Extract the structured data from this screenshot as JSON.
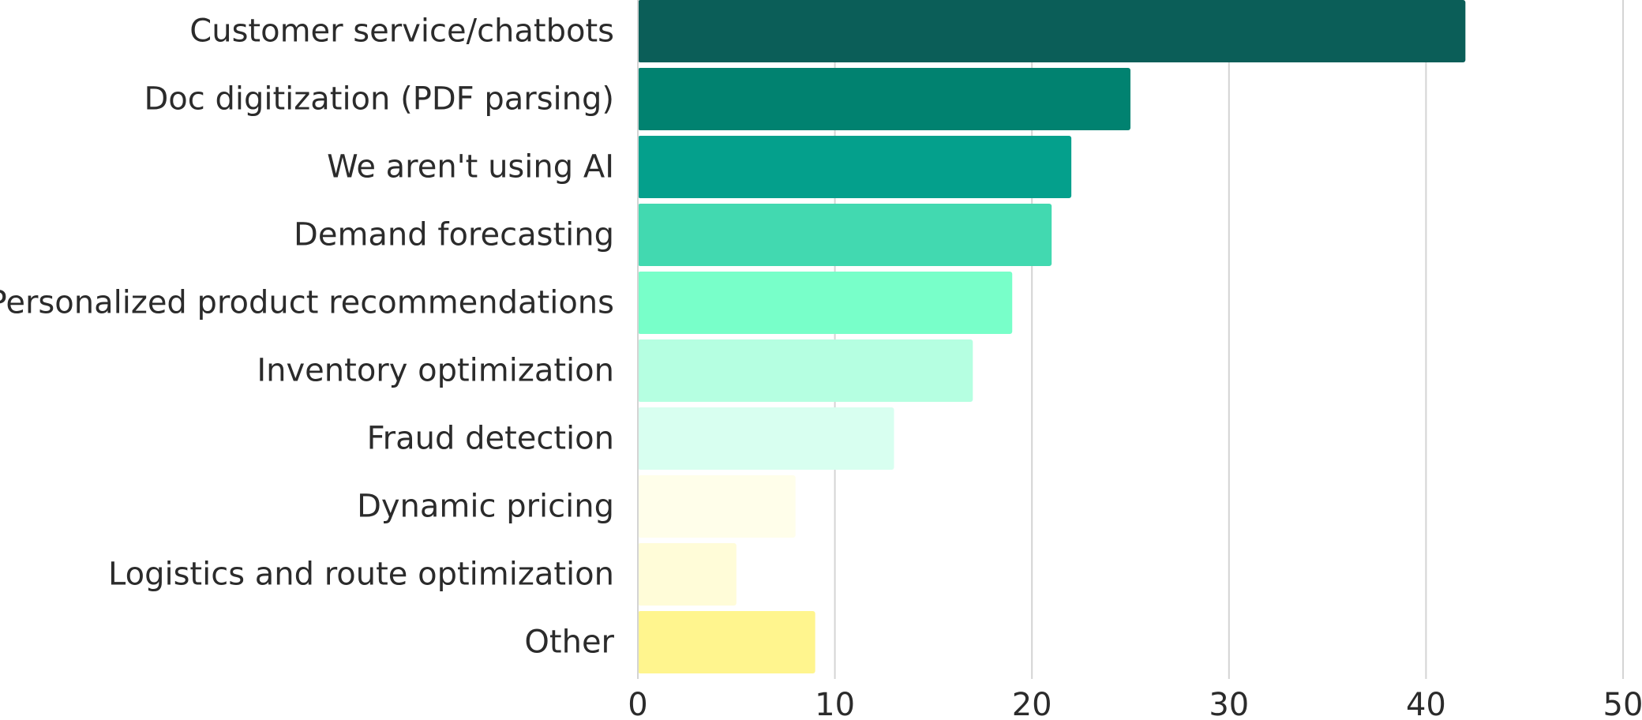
{
  "chart_data": {
    "type": "bar",
    "orientation": "horizontal",
    "categories": [
      "Customer service/chatbots",
      "Doc digitization (PDF parsing)",
      "We aren't using AI",
      "Demand forecasting",
      "Personalized product recommendations",
      "Inventory optimization",
      "Fraud detection",
      "Dynamic pricing",
      "Logistics and route optimization",
      "Other"
    ],
    "values": [
      42,
      25,
      22,
      21,
      19,
      17,
      13,
      8,
      5,
      9
    ],
    "colors": [
      "#0b5e58",
      "#018270",
      "#04a08c",
      "#42d9b0",
      "#78ffc9",
      "#b5ffe1",
      "#d8fff0",
      "#fffeea",
      "#fffcd8",
      "#fff58e"
    ],
    "xlim": [
      0,
      50
    ],
    "xticks": [
      0,
      10,
      20,
      30,
      40,
      50
    ],
    "title": "",
    "xlabel": "",
    "ylabel": "",
    "grid": "vertical",
    "legend": "none"
  }
}
